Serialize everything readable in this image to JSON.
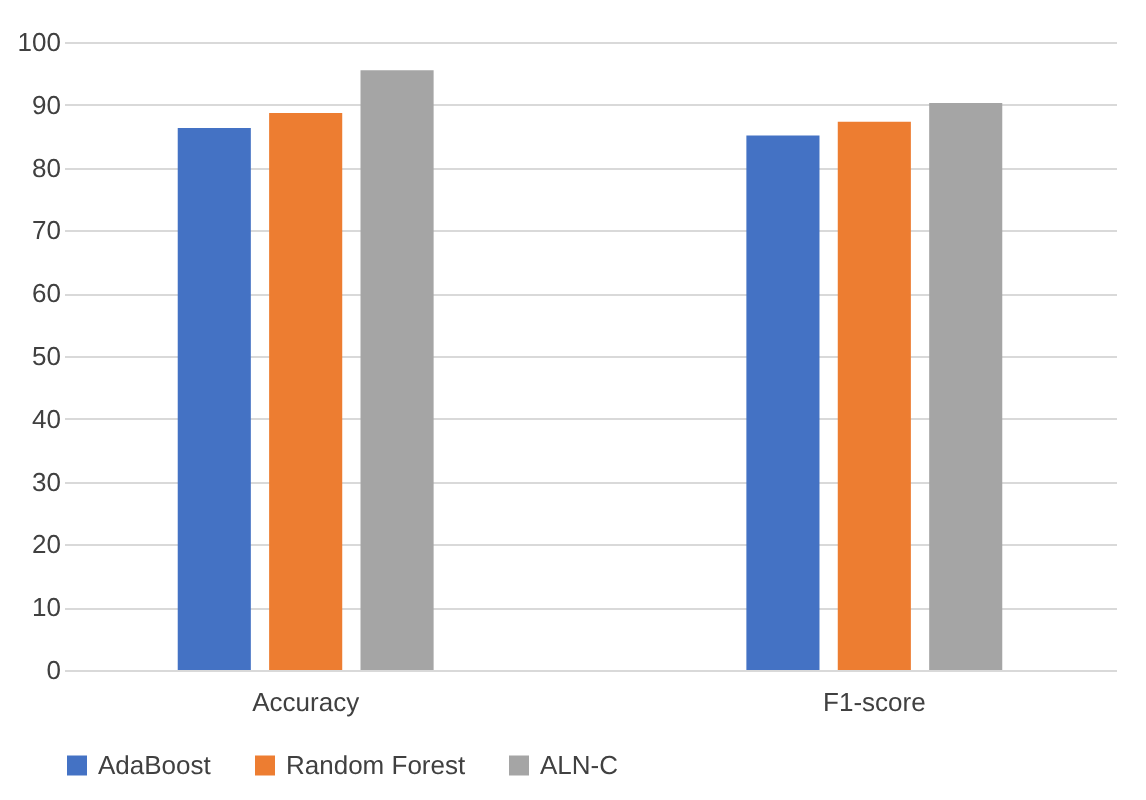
{
  "chart_data": {
    "type": "bar",
    "categories": [
      "Accuracy",
      "F1-score"
    ],
    "series": [
      {
        "name": "AdaBoost",
        "color": "#4472c4",
        "values": [
          86.3,
          85.1
        ]
      },
      {
        "name": "Random Forest",
        "color": "#ed7d31",
        "values": [
          88.7,
          87.3
        ]
      },
      {
        "name": "ALN-C",
        "color": "#a5a5a5",
        "values": [
          95.5,
          90.3
        ]
      }
    ],
    "ylim": [
      0,
      100
    ],
    "yticks": [
      0,
      10,
      20,
      30,
      40,
      50,
      60,
      70,
      80,
      90,
      100
    ],
    "grid": "y",
    "legend": "bottom"
  }
}
